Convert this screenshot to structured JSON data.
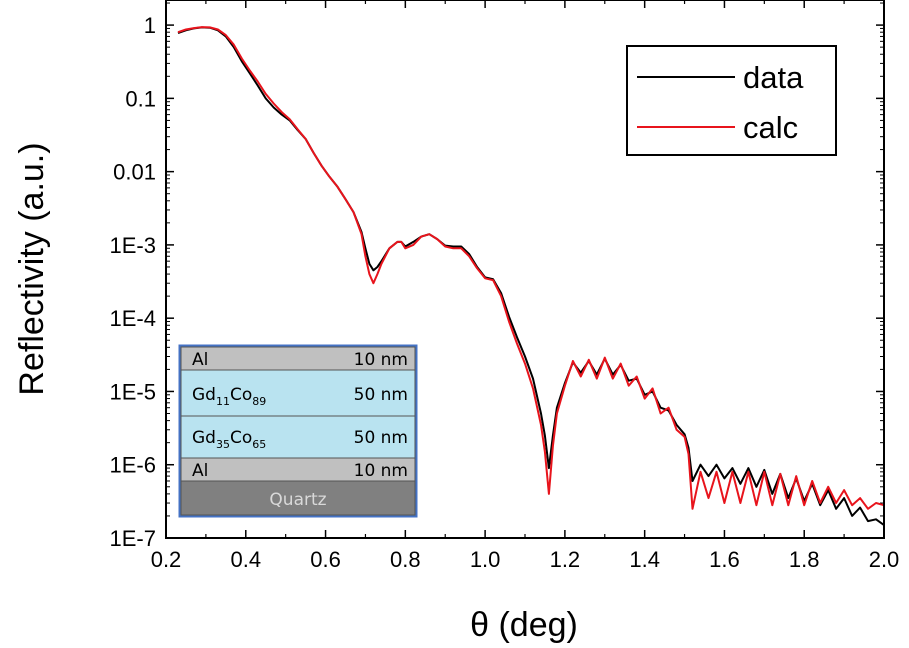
{
  "chart_data": {
    "type": "line",
    "xlabel": "θ (deg)",
    "ylabel": "Reflectivity (a.u.)",
    "xlim": [
      0.2,
      2.0
    ],
    "ylim": [
      1e-07,
      2.2
    ],
    "yscale": "log",
    "xticks": [
      "0.2",
      "0.4",
      "0.6",
      "0.8",
      "1.0",
      "1.2",
      "1.4",
      "1.6",
      "1.8",
      "2.0"
    ],
    "yticks": [
      {
        "value": 1,
        "label": "1"
      },
      {
        "value": 0.1,
        "label": "0.1"
      },
      {
        "value": 0.01,
        "label": "0.01"
      },
      {
        "value": 0.001,
        "label": "1E-3"
      },
      {
        "value": 0.0001,
        "label": "1E-4"
      },
      {
        "value": 1e-05,
        "label": "1E-5"
      },
      {
        "value": 1e-06,
        "label": "1E-6"
      },
      {
        "value": 1e-07,
        "label": "1E-7"
      }
    ],
    "legend_position": "top-right",
    "series": [
      {
        "name": "data",
        "color": "#000000",
        "x": [
          0.23,
          0.25,
          0.27,
          0.29,
          0.31,
          0.33,
          0.35,
          0.37,
          0.39,
          0.41,
          0.43,
          0.45,
          0.47,
          0.49,
          0.51,
          0.53,
          0.55,
          0.57,
          0.59,
          0.61,
          0.63,
          0.65,
          0.67,
          0.69,
          0.7,
          0.71,
          0.72,
          0.73,
          0.74,
          0.76,
          0.78,
          0.79,
          0.8,
          0.82,
          0.84,
          0.86,
          0.88,
          0.9,
          0.92,
          0.94,
          0.96,
          0.98,
          1.0,
          1.02,
          1.04,
          1.06,
          1.08,
          1.1,
          1.12,
          1.14,
          1.15,
          1.16,
          1.17,
          1.18,
          1.2,
          1.22,
          1.24,
          1.26,
          1.28,
          1.3,
          1.32,
          1.34,
          1.36,
          1.38,
          1.4,
          1.42,
          1.44,
          1.46,
          1.48,
          1.5,
          1.51,
          1.52,
          1.54,
          1.56,
          1.58,
          1.6,
          1.62,
          1.64,
          1.66,
          1.68,
          1.7,
          1.72,
          1.74,
          1.76,
          1.78,
          1.8,
          1.82,
          1.84,
          1.86,
          1.88,
          1.9,
          1.92,
          1.94,
          1.96,
          1.98,
          2.0
        ],
        "y": [
          0.78,
          0.85,
          0.9,
          0.93,
          0.92,
          0.85,
          0.7,
          0.5,
          0.32,
          0.22,
          0.15,
          0.1,
          0.075,
          0.06,
          0.05,
          0.037,
          0.028,
          0.018,
          0.012,
          0.0085,
          0.0062,
          0.0042,
          0.0028,
          0.0015,
          0.0009,
          0.00055,
          0.00045,
          0.0005,
          0.0006,
          0.0009,
          0.0011,
          0.0011,
          0.00095,
          0.0011,
          0.0013,
          0.0014,
          0.0012,
          0.00098,
          0.00095,
          0.00095,
          0.00075,
          0.0005,
          0.00036,
          0.00034,
          0.00022,
          0.000105,
          5.5e-05,
          3e-05,
          1.5e-05,
          5e-06,
          2.5e-06,
          9e-07,
          2.5e-06,
          6e-06,
          1.3e-05,
          2.5e-05,
          1.8e-05,
          2.6e-05,
          1.7e-05,
          2.8e-05,
          1.7e-05,
          2.3e-05,
          1.4e-05,
          1.5e-05,
          9e-06,
          1e-05,
          6e-06,
          5.5e-06,
          3.5e-06,
          2.6e-06,
          1.7e-06,
          6e-07,
          1e-06,
          7e-07,
          1e-06,
          6.5e-07,
          9e-07,
          5.5e-07,
          9e-07,
          5e-07,
          8.5e-07,
          4e-07,
          7.5e-07,
          3.5e-07,
          6.5e-07,
          3.2e-07,
          5.5e-07,
          2.8e-07,
          4.5e-07,
          2.5e-07,
          3.5e-07,
          2e-07,
          2.6e-07,
          1.7e-07,
          1.8e-07,
          1.5e-07
        ]
      },
      {
        "name": "calc",
        "color": "#e8141c",
        "x": [
          0.23,
          0.25,
          0.27,
          0.29,
          0.31,
          0.33,
          0.35,
          0.37,
          0.39,
          0.41,
          0.43,
          0.45,
          0.47,
          0.49,
          0.51,
          0.53,
          0.55,
          0.57,
          0.59,
          0.61,
          0.63,
          0.65,
          0.67,
          0.69,
          0.7,
          0.71,
          0.72,
          0.73,
          0.74,
          0.76,
          0.78,
          0.79,
          0.8,
          0.82,
          0.84,
          0.86,
          0.88,
          0.9,
          0.92,
          0.94,
          0.96,
          0.98,
          1.0,
          1.02,
          1.04,
          1.06,
          1.08,
          1.1,
          1.12,
          1.14,
          1.15,
          1.16,
          1.17,
          1.18,
          1.2,
          1.22,
          1.24,
          1.26,
          1.28,
          1.3,
          1.32,
          1.34,
          1.36,
          1.38,
          1.4,
          1.42,
          1.44,
          1.46,
          1.48,
          1.5,
          1.51,
          1.52,
          1.54,
          1.56,
          1.58,
          1.6,
          1.62,
          1.64,
          1.66,
          1.68,
          1.7,
          1.72,
          1.74,
          1.76,
          1.78,
          1.8,
          1.82,
          1.84,
          1.86,
          1.88,
          1.9,
          1.92,
          1.94,
          1.96,
          1.98,
          2.0
        ],
        "y": [
          0.8,
          0.87,
          0.91,
          0.94,
          0.93,
          0.87,
          0.73,
          0.54,
          0.35,
          0.24,
          0.17,
          0.115,
          0.085,
          0.065,
          0.052,
          0.038,
          0.028,
          0.018,
          0.012,
          0.0085,
          0.0062,
          0.0042,
          0.0028,
          0.0014,
          0.0007,
          0.0004,
          0.0003,
          0.0004,
          0.00055,
          0.0009,
          0.0011,
          0.0011,
          0.0009,
          0.001,
          0.0013,
          0.0014,
          0.0012,
          0.00095,
          0.0009,
          0.0009,
          0.0007,
          0.00048,
          0.00035,
          0.00033,
          0.0002,
          9e-05,
          4.5e-05,
          2.4e-05,
          1.1e-05,
          3.5e-06,
          1.5e-06,
          4e-07,
          1.8e-06,
          5e-06,
          1.2e-05,
          2.6e-05,
          1.6e-05,
          2.7e-05,
          1.5e-05,
          2.9e-05,
          1.5e-05,
          2.4e-05,
          1.2e-05,
          1.6e-05,
          8e-06,
          1.1e-05,
          5e-06,
          6e-06,
          3e-06,
          2.4e-06,
          1.4e-06,
          2.5e-07,
          8e-07,
          3.5e-07,
          8e-07,
          3e-07,
          8e-07,
          3e-07,
          8e-07,
          2.8e-07,
          8e-07,
          2.8e-07,
          7.5e-07,
          2.8e-07,
          7e-07,
          2.8e-07,
          6e-07,
          3e-07,
          5e-07,
          3e-07,
          4.5e-07,
          2.8e-07,
          3.5e-07,
          2.5e-07,
          3e-07,
          2.8e-07
        ]
      }
    ]
  },
  "inset": {
    "layers": [
      {
        "material": "Al",
        "thickness": "10 nm",
        "fill": "#c0c0c0"
      },
      {
        "material": "Gd",
        "sub1": "11",
        "material2": "Co",
        "sub2": "89",
        "thickness": "50 nm",
        "fill": "#b9e3f0"
      },
      {
        "material": "Gd",
        "sub1": "35",
        "material2": "Co",
        "sub2": "65",
        "thickness": "50 nm",
        "fill": "#b9e3f0"
      },
      {
        "material": "Al",
        "thickness": "10 nm",
        "fill": "#c0c0c0"
      },
      {
        "material": "Quartz",
        "thickness": "",
        "fill": "#808080"
      }
    ]
  }
}
